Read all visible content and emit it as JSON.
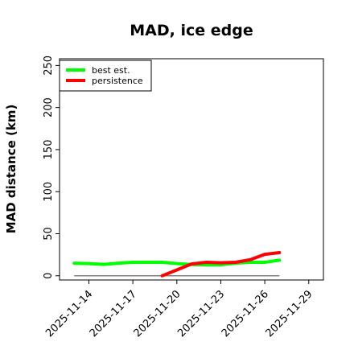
{
  "chart_data": {
    "type": "line",
    "title": "MAD, ice edge",
    "xlabel": "",
    "ylabel": "MAD distance (km)",
    "ylim": [
      -5,
      258
    ],
    "xlim": [
      "2025-11-12",
      "2025-11-30"
    ],
    "yticks": [
      0,
      50,
      100,
      150,
      200,
      250
    ],
    "xticks": [
      "2025-11-14",
      "2025-11-17",
      "2025-11-20",
      "2025-11-23",
      "2025-11-26",
      "2025-11-29"
    ],
    "grid": false,
    "legend": "top-left",
    "reference_line": {
      "y": 0,
      "x": [
        "2025-11-13",
        "2025-11-27"
      ],
      "color": "#808080"
    },
    "series": [
      {
        "name": "best est.",
        "color": "#00ff00",
        "x": [
          "2025-11-13",
          "2025-11-14",
          "2025-11-15",
          "2025-11-16",
          "2025-11-17",
          "2025-11-18",
          "2025-11-19",
          "2025-11-20",
          "2025-11-21",
          "2025-11-22",
          "2025-11-23",
          "2025-11-24",
          "2025-11-25",
          "2025-11-26",
          "2025-11-27"
        ],
        "y": [
          15,
          14.5,
          13.5,
          15,
          16,
          16,
          16,
          14.5,
          13.5,
          13,
          13,
          15,
          16,
          16,
          18.5
        ]
      },
      {
        "name": "persistence",
        "color": "#ff0000",
        "x": [
          "2025-11-19",
          "2025-11-20",
          "2025-11-21",
          "2025-11-22",
          "2025-11-23",
          "2025-11-24",
          "2025-11-25",
          "2025-11-26",
          "2025-11-27"
        ],
        "y": [
          0,
          7,
          14,
          16,
          15.5,
          16,
          19,
          25.5,
          27.5
        ]
      }
    ]
  }
}
